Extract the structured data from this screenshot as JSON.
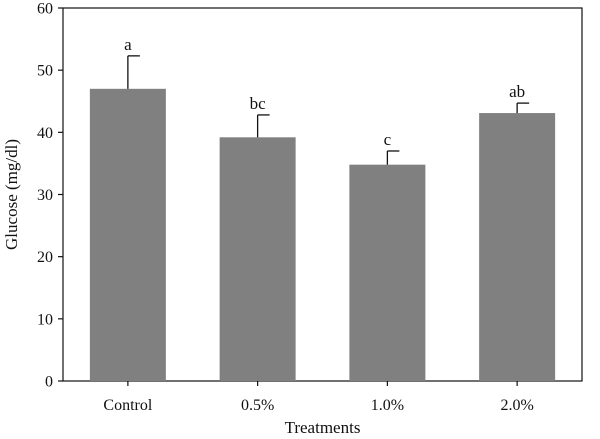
{
  "chart_data": {
    "type": "bar",
    "categories": [
      "Control",
      "0.5%",
      "1.0%",
      "2.0%"
    ],
    "values": [
      47,
      39.2,
      34.8,
      43.1
    ],
    "error_upper": [
      52.3,
      42.8,
      37.0,
      44.7
    ],
    "significance_labels": [
      "a",
      "bc",
      "c",
      "ab"
    ],
    "title": "",
    "xlabel": "Treatments",
    "ylabel": "Glucose (mg/dl)",
    "ylim": [
      0,
      60
    ],
    "yticks": [
      0,
      10,
      20,
      30,
      40,
      50,
      60
    ],
    "grid": false,
    "legend": "none",
    "bar_color": "#808080"
  }
}
